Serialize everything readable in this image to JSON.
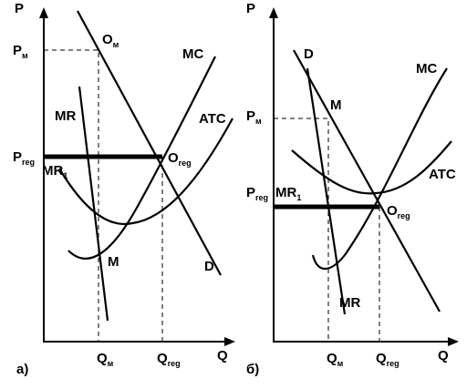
{
  "panels": [
    {
      "caption": "а)",
      "axis_y": "P",
      "axis_x": "Q",
      "labels": [
        {
          "text": "P",
          "sub": "м"
        },
        {
          "text": "O",
          "sub": "м"
        },
        {
          "text": "MC"
        },
        {
          "text": "MR"
        },
        {
          "text": "ATC"
        },
        {
          "text": "P",
          "sub": "reg"
        },
        {
          "text": "MR",
          "sub": "1"
        },
        {
          "text": "O",
          "sub": "reg"
        },
        {
          "text": "M"
        },
        {
          "text": "D"
        },
        {
          "text": "Q",
          "sub": "м"
        },
        {
          "text": "Q",
          "sub": "reg"
        }
      ]
    },
    {
      "caption": "б)",
      "axis_y": "P",
      "axis_x": "Q",
      "labels": [
        {
          "text": "D"
        },
        {
          "text": "MC"
        },
        {
          "text": "P",
          "sub": "м"
        },
        {
          "text": "M"
        },
        {
          "text": "ATC"
        },
        {
          "text": "P",
          "sub": "reg"
        },
        {
          "text": "MR",
          "sub": "1"
        },
        {
          "text": "O",
          "sub": "reg"
        },
        {
          "text": "MR"
        },
        {
          "text": "Q",
          "sub": "м"
        },
        {
          "text": "Q",
          "sub": "reg"
        }
      ]
    }
  ]
}
